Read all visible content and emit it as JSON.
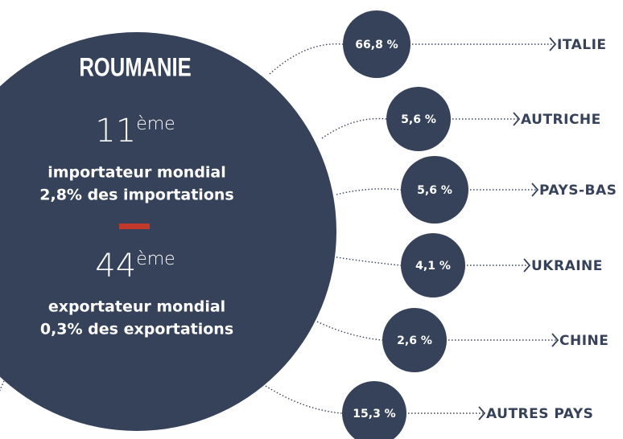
{
  "title": "ROUMANIE",
  "import": {
    "rank": "11",
    "suffix": "ème",
    "line1": "importateur mondial",
    "line2": "2,8% des importations"
  },
  "export": {
    "rank": "44",
    "suffix": "ème",
    "line1": "exportateur mondial",
    "line2": "0,3% des exportations"
  },
  "partners": [
    {
      "share": "66,8 %",
      "country": "ITALIE"
    },
    {
      "share": "5,6 %",
      "country": "AUTRICHE"
    },
    {
      "share": "5,6 %",
      "country": "PAYS-BAS"
    },
    {
      "share": "4,1 %",
      "country": "UKRAINE"
    },
    {
      "share": "2,6 %",
      "country": "CHINE"
    },
    {
      "share": "15,3 %",
      "country": "AUTRES PAYS"
    }
  ]
}
